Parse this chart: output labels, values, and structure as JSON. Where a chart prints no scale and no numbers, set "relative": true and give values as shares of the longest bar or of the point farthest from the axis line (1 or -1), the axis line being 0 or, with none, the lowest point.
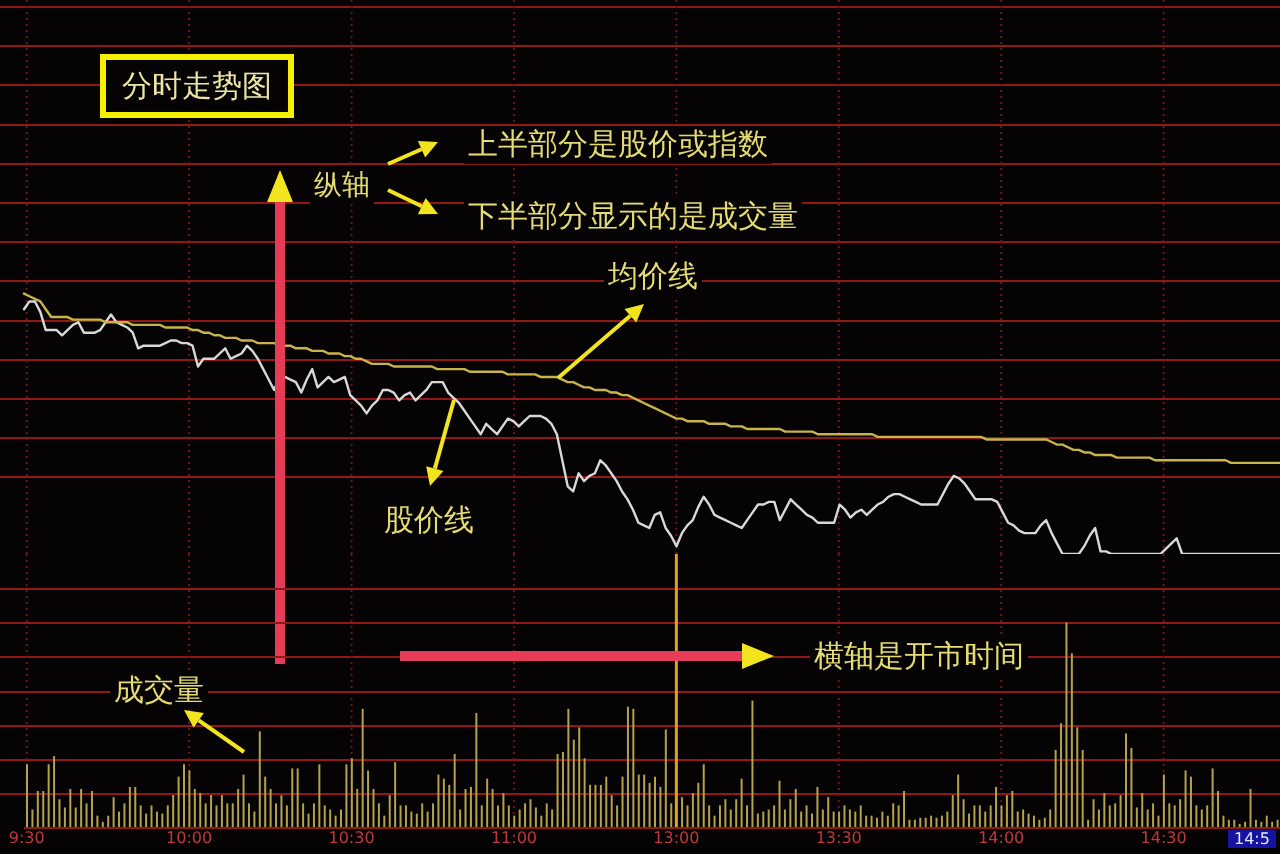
{
  "chart_data": [
    {
      "type": "line",
      "title": "分时走势图",
      "annotations": [
        "纵轴",
        "上半部分是股价或指数",
        "下半部分显示的是成交量",
        "均价线",
        "股价线"
      ],
      "relative": true,
      "grid": true,
      "categories": [
        null,
        null,
        null,
        null,
        null,
        null,
        null,
        null,
        null,
        null,
        null,
        null,
        null,
        null,
        null,
        null,
        null,
        null,
        null,
        null,
        null,
        null,
        null,
        null,
        null,
        null,
        null,
        null,
        null,
        null,
        null,
        null,
        null,
        null,
        null,
        null,
        null,
        null,
        null,
        null,
        null,
        null,
        null,
        null,
        null,
        null,
        null,
        null,
        null,
        null,
        null,
        null,
        null,
        null,
        null,
        null,
        null,
        null,
        null,
        null,
        null,
        null,
        null,
        null,
        null,
        null,
        null,
        null,
        null,
        null,
        null,
        null,
        null,
        null,
        null,
        null,
        null,
        null,
        null,
        null,
        null,
        null,
        null,
        null,
        null,
        null,
        null,
        null,
        null,
        null,
        null,
        null,
        null,
        null,
        null,
        null,
        null,
        null,
        null,
        null,
        null,
        null,
        null,
        null,
        null,
        null,
        null,
        null,
        null,
        null,
        null,
        null,
        null,
        null,
        null,
        null,
        null,
        null,
        null,
        null,
        null,
        null,
        null,
        null,
        null,
        null,
        null,
        null,
        null,
        null,
        null,
        null,
        null,
        null,
        null,
        null,
        null,
        null,
        null,
        null,
        null,
        null,
        null,
        null,
        null,
        null,
        null,
        null,
        null,
        null,
        null,
        null,
        null,
        null,
        null,
        null,
        null,
        null,
        null,
        null,
        null,
        null,
        null,
        null,
        null,
        null,
        null,
        null,
        null,
        null,
        null,
        null,
        null,
        null,
        null,
        null,
        null,
        null,
        null,
        null,
        null,
        null,
        null,
        null,
        null,
        null,
        null,
        null,
        null,
        null,
        null,
        null,
        null,
        null,
        null,
        null,
        null,
        null,
        null,
        null,
        null,
        null,
        null,
        null,
        null,
        null,
        null,
        null,
        null,
        null,
        null,
        null,
        null,
        null,
        null,
        null,
        null,
        null,
        null,
        null,
        null,
        null,
        null,
        null,
        null,
        null,
        null,
        null,
        null,
        null,
        null,
        null
      ],
      "series": [
        {
          "color": "#d8d8d8",
          "values": [
            0.94,
            0.97,
            0.97,
            0.93,
            0.86,
            0.86,
            0.86,
            0.84,
            0.86,
            0.88,
            0.89,
            0.85,
            0.85,
            0.85,
            0.86,
            0.89,
            0.92,
            0.89,
            0.88,
            0.87,
            0.85,
            0.79,
            0.8,
            0.8,
            0.8,
            0.8,
            0.81,
            0.82,
            0.82,
            0.81,
            0.81,
            0.8,
            0.72,
            0.75,
            0.75,
            0.75,
            0.77,
            0.79,
            0.75,
            0.76,
            0.77,
            0.8,
            0.78,
            0.75,
            0.71,
            0.67,
            0.63,
            0.68,
            0.68,
            0.67,
            0.66,
            0.62,
            0.67,
            0.71,
            0.64,
            0.66,
            0.68,
            0.66,
            0.67,
            0.68,
            0.61,
            0.59,
            0.57,
            0.54,
            0.57,
            0.59,
            0.63,
            0.63,
            0.62,
            0.59,
            0.61,
            0.62,
            0.59,
            0.61,
            0.63,
            0.66,
            0.66,
            0.66,
            0.62,
            0.6,
            0.58,
            0.55,
            0.52,
            0.49,
            0.46,
            0.5,
            0.48,
            0.46,
            0.49,
            0.52,
            0.51,
            0.49,
            0.51,
            0.53,
            0.53,
            0.53,
            0.52,
            0.5,
            0.46,
            0.36,
            0.26,
            0.24,
            0.31,
            0.28,
            0.3,
            0.31,
            0.36,
            0.34,
            0.31,
            0.28,
            0.24,
            0.21,
            0.17,
            0.12,
            0.11,
            0.1,
            0.15,
            0.16,
            0.1,
            0.07,
            0.03,
            0.08,
            0.11,
            0.13,
            0.18,
            0.22,
            0.19,
            0.15,
            0.14,
            0.13,
            0.12,
            0.11,
            0.1,
            0.13,
            0.16,
            0.19,
            0.19,
            0.2,
            0.2,
            0.13,
            0.17,
            0.21,
            0.19,
            0.17,
            0.15,
            0.14,
            0.12,
            0.12,
            0.12,
            0.12,
            0.19,
            0.17,
            0.14,
            0.16,
            0.17,
            0.15,
            0.17,
            0.19,
            0.2,
            0.22,
            0.23,
            0.23,
            0.22,
            0.21,
            0.2,
            0.19,
            0.19,
            0.19,
            0.19,
            0.23,
            0.27,
            0.3,
            0.29,
            0.27,
            0.24,
            0.21,
            0.21,
            0.21,
            0.21,
            0.2,
            0.16,
            0.12,
            0.11,
            0.09,
            0.08,
            0.08,
            0.08,
            0.11,
            0.13,
            0.08,
            0.04,
            0,
            0,
            0,
            0,
            0.03,
            0.07,
            0.1,
            0.01,
            0.01,
            0,
            0,
            0,
            0,
            0,
            0,
            0,
            0,
            0,
            0,
            0.02,
            0.04,
            0.06,
            0,
            0,
            0,
            0,
            0,
            0,
            0,
            0,
            0,
            0,
            0,
            0,
            0,
            0,
            0,
            0,
            0,
            0,
            0
          ]
        },
        {
          "color": "#c8b44a",
          "values": [
            1,
            0.99,
            0.98,
            0.97,
            0.94,
            0.91,
            0.91,
            0.91,
            0.91,
            0.9,
            0.9,
            0.9,
            0.9,
            0.9,
            0.9,
            0.89,
            0.89,
            0.89,
            0.89,
            0.89,
            0.88,
            0.88,
            0.88,
            0.88,
            0.88,
            0.88,
            0.87,
            0.87,
            0.87,
            0.87,
            0.87,
            0.86,
            0.86,
            0.85,
            0.85,
            0.84,
            0.84,
            0.83,
            0.83,
            0.83,
            0.82,
            0.82,
            0.82,
            0.81,
            0.81,
            0.81,
            0.81,
            0.8,
            0.8,
            0.8,
            0.79,
            0.79,
            0.79,
            0.78,
            0.78,
            0.78,
            0.77,
            0.77,
            0.77,
            0.76,
            0.76,
            0.75,
            0.75,
            0.74,
            0.73,
            0.73,
            0.73,
            0.73,
            0.72,
            0.72,
            0.72,
            0.72,
            0.72,
            0.72,
            0.72,
            0.72,
            0.71,
            0.71,
            0.71,
            0.71,
            0.71,
            0.71,
            0.7,
            0.7,
            0.7,
            0.7,
            0.7,
            0.7,
            0.7,
            0.69,
            0.69,
            0.69,
            0.69,
            0.69,
            0.69,
            0.68,
            0.68,
            0.68,
            0.68,
            0.67,
            0.66,
            0.66,
            0.65,
            0.64,
            0.64,
            0.63,
            0.63,
            0.63,
            0.62,
            0.62,
            0.61,
            0.61,
            0.6,
            0.59,
            0.58,
            0.57,
            0.56,
            0.55,
            0.54,
            0.53,
            0.52,
            0.52,
            0.51,
            0.51,
            0.51,
            0.51,
            0.5,
            0.5,
            0.5,
            0.5,
            0.49,
            0.49,
            0.49,
            0.48,
            0.48,
            0.48,
            0.48,
            0.48,
            0.48,
            0.48,
            0.47,
            0.47,
            0.47,
            0.47,
            0.47,
            0.47,
            0.46,
            0.46,
            0.46,
            0.46,
            0.46,
            0.46,
            0.46,
            0.46,
            0.46,
            0.46,
            0.46,
            0.45,
            0.45,
            0.45,
            0.45,
            0.45,
            0.45,
            0.45,
            0.45,
            0.45,
            0.45,
            0.45,
            0.45,
            0.45,
            0.45,
            0.45,
            0.45,
            0.45,
            0.45,
            0.45,
            0.45,
            0.44,
            0.44,
            0.44,
            0.44,
            0.44,
            0.44,
            0.44,
            0.44,
            0.44,
            0.44,
            0.44,
            0.44,
            0.43,
            0.42,
            0.42,
            0.41,
            0.4,
            0.4,
            0.39,
            0.39,
            0.38,
            0.38,
            0.38,
            0.38,
            0.37,
            0.37,
            0.37,
            0.37,
            0.37,
            0.37,
            0.37,
            0.36,
            0.36,
            0.36,
            0.36,
            0.36,
            0.36,
            0.36,
            0.36,
            0.36,
            0.36,
            0.36,
            0.36,
            0.36,
            0.36,
            0.35,
            0.35,
            0.35,
            0.35,
            0.35,
            0.35,
            0.35,
            0.35,
            0.35,
            0.35
          ]
        }
      ]
    },
    {
      "type": "bar",
      "annotations": [
        "成交量",
        "横轴是开市时间",
        "14:5"
      ],
      "relative": true,
      "color": "#b4a24c",
      "tick_labels": "x",
      "grid": true,
      "ref_lines": [
        {
          "axis": "x",
          "value": "13:00",
          "color": "#e0a020"
        }
      ],
      "categories": [
        "9:30",
        null,
        null,
        null,
        null,
        null,
        null,
        null,
        null,
        null,
        null,
        null,
        null,
        null,
        null,
        null,
        null,
        null,
        null,
        null,
        null,
        null,
        null,
        null,
        null,
        null,
        null,
        null,
        null,
        null,
        "10:00",
        null,
        null,
        null,
        null,
        null,
        null,
        null,
        null,
        null,
        null,
        null,
        null,
        null,
        null,
        null,
        null,
        null,
        null,
        null,
        null,
        null,
        null,
        null,
        null,
        null,
        null,
        null,
        null,
        null,
        "10:30",
        null,
        null,
        null,
        null,
        null,
        null,
        null,
        null,
        null,
        null,
        null,
        null,
        null,
        null,
        null,
        null,
        null,
        null,
        null,
        null,
        null,
        null,
        null,
        null,
        null,
        null,
        null,
        null,
        null,
        "11:00",
        null,
        null,
        null,
        null,
        null,
        null,
        null,
        null,
        null,
        null,
        null,
        null,
        null,
        null,
        null,
        null,
        null,
        null,
        null,
        null,
        null,
        null,
        null,
        null,
        null,
        null,
        null,
        null,
        null,
        "13:00",
        null,
        null,
        null,
        null,
        null,
        null,
        null,
        null,
        null,
        null,
        null,
        null,
        null,
        null,
        null,
        null,
        null,
        null,
        null,
        null,
        null,
        null,
        null,
        null,
        null,
        null,
        null,
        null,
        null,
        "13:30",
        null,
        null,
        null,
        null,
        null,
        null,
        null,
        null,
        null,
        null,
        null,
        null,
        null,
        null,
        null,
        null,
        null,
        null,
        null,
        null,
        null,
        null,
        null,
        null,
        null,
        null,
        null,
        null,
        null,
        "14:00",
        null,
        null,
        null,
        null,
        null,
        null,
        null,
        null,
        null,
        null,
        null,
        null,
        null,
        null,
        null,
        null,
        null,
        null,
        null,
        null,
        null,
        null,
        null,
        null,
        null,
        null,
        null,
        null,
        null,
        "14:30",
        null,
        null,
        null,
        null,
        null,
        null,
        null,
        null,
        null,
        null,
        null,
        null,
        null,
        null,
        null,
        null,
        null,
        null,
        null,
        null,
        null
      ],
      "values": [
        0.31,
        0.09,
        0.18,
        0.18,
        0.31,
        0.35,
        0.14,
        0.1,
        0.19,
        0.1,
        0.19,
        0.12,
        0.18,
        0.06,
        0.03,
        0.06,
        0.15,
        0.08,
        0.12,
        0.2,
        0.2,
        0.11,
        0.07,
        0.11,
        0.08,
        0.07,
        0.11,
        0.16,
        0.25,
        0.31,
        0.28,
        0.19,
        0.17,
        0.12,
        0.16,
        0.11,
        0.16,
        0.12,
        0.12,
        0.19,
        0.26,
        0.12,
        0.08,
        0.47,
        0.25,
        0.19,
        0.12,
        0.16,
        0.11,
        0.29,
        0.29,
        0.12,
        0.07,
        0.12,
        0.31,
        0.11,
        0.09,
        0.06,
        0.09,
        0.31,
        0.34,
        0.19,
        0.58,
        0.28,
        0.19,
        0.12,
        0.06,
        0.16,
        0.32,
        0.11,
        0.11,
        0.08,
        0.07,
        0.12,
        0.08,
        0.12,
        0.26,
        0.24,
        0.21,
        0.36,
        0.09,
        0.19,
        0.2,
        0.56,
        0.11,
        0.24,
        0.19,
        0.11,
        0.17,
        0.11,
        0.06,
        0.09,
        0.12,
        0.14,
        0.1,
        0.06,
        0.12,
        0.09,
        0.36,
        0.37,
        0.58,
        0.43,
        0.49,
        0.34,
        0.21,
        0.21,
        0.21,
        0.25,
        0.16,
        0.11,
        0.25,
        0.59,
        0.58,
        0.26,
        0.26,
        0.22,
        0.25,
        0.2,
        0.48,
        0.12,
        null,
        0.15,
        0.11,
        0.17,
        0.22,
        0.31,
        0.11,
        0.06,
        0.11,
        0.14,
        0.09,
        0.14,
        0.24,
        0.11,
        0.62,
        0.07,
        0.08,
        0.09,
        0.11,
        0.23,
        0.09,
        0.14,
        0.19,
        0.08,
        0.11,
        0.07,
        0.2,
        0.09,
        0.15,
        0.08,
        0.08,
        0.11,
        0.09,
        0.08,
        0.11,
        0.06,
        0.06,
        0.05,
        0.08,
        0.06,
        0.12,
        0.11,
        0.18,
        0.04,
        0.04,
        0.05,
        0.05,
        0.06,
        0.05,
        0.06,
        0.08,
        0.16,
        0.26,
        0.14,
        0.07,
        0.11,
        0.11,
        0.08,
        0.11,
        0.2,
        0.11,
        0.16,
        0.18,
        0.08,
        0.09,
        0.07,
        0.06,
        0.04,
        0.05,
        0.09,
        0.38,
        0.51,
        1,
        0.85,
        0.49,
        0.38,
        0.04,
        0.14,
        0.09,
        0.17,
        0.11,
        0.12,
        0.16,
        0.46,
        0.39,
        0.1,
        0.17,
        0.09,
        0.12,
        0.06,
        0.26,
        0.12,
        0.11,
        0.14,
        0.28,
        0.25,
        0.11,
        0.09,
        0.11,
        0.29,
        0.18,
        0.06,
        0.04,
        0.04,
        0.02,
        0.03,
        0.19,
        0.04,
        0.03,
        0.06,
        0.03,
        0.04
      ]
    }
  ]
}
